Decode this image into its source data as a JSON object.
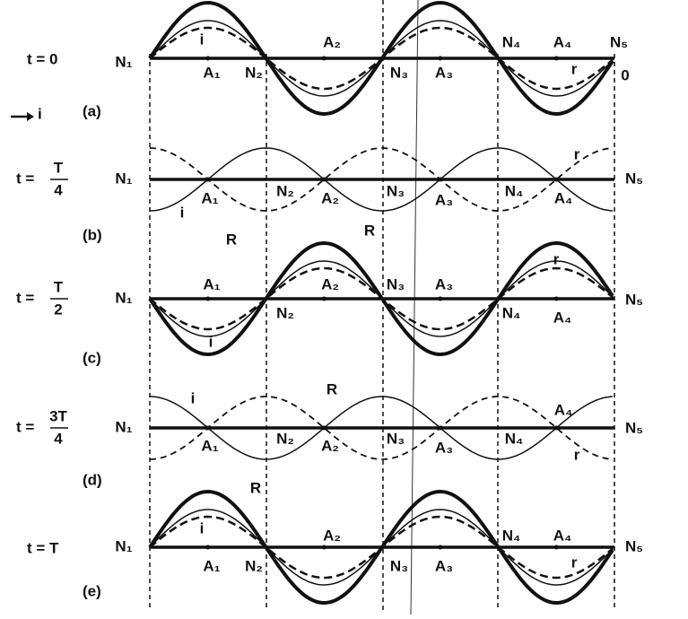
{
  "legend": {
    "label": "i"
  },
  "rows": [
    {
      "time": {
        "lead": "t = 0"
      },
      "panel": "(a)",
      "labels": [
        "N₁",
        "A₁",
        "N₂",
        "A₂",
        "N₃",
        "A₃",
        "N₄",
        "A₄",
        "N₅",
        "i",
        "r",
        "0"
      ]
    },
    {
      "time": {
        "lead": "t =",
        "num": "T",
        "den": "4"
      },
      "panel": "(b)",
      "labels": [
        "N₁",
        "A₁",
        "N₂",
        "A₂",
        "N₃",
        "A₃",
        "N₄",
        "A₄",
        "N₅",
        "i",
        "r",
        "R"
      ]
    },
    {
      "time": {
        "lead": "t =",
        "num": "T",
        "den": "2"
      },
      "panel": "(c)",
      "labels": [
        "N₁",
        "A₁",
        "N₂",
        "A₂",
        "N₃",
        "A₃",
        "N₄",
        "A₄",
        "N₅",
        "i",
        "r",
        "R"
      ]
    },
    {
      "time": {
        "lead": "t =",
        "num": "3T",
        "den": "4"
      },
      "panel": "(d)",
      "labels": [
        "N₁",
        "A₁",
        "N₂",
        "A₂",
        "N₃",
        "A₃",
        "N₄",
        "A₄",
        "N₅",
        "i",
        "r",
        "R"
      ]
    },
    {
      "time": {
        "lead": "t = T"
      },
      "panel": "(e)",
      "labels": [
        "N₁",
        "A₁",
        "N₂",
        "A₂",
        "N₃",
        "A₃",
        "N₄",
        "A₄",
        "N₅",
        "i",
        "r",
        "R"
      ]
    }
  ]
}
